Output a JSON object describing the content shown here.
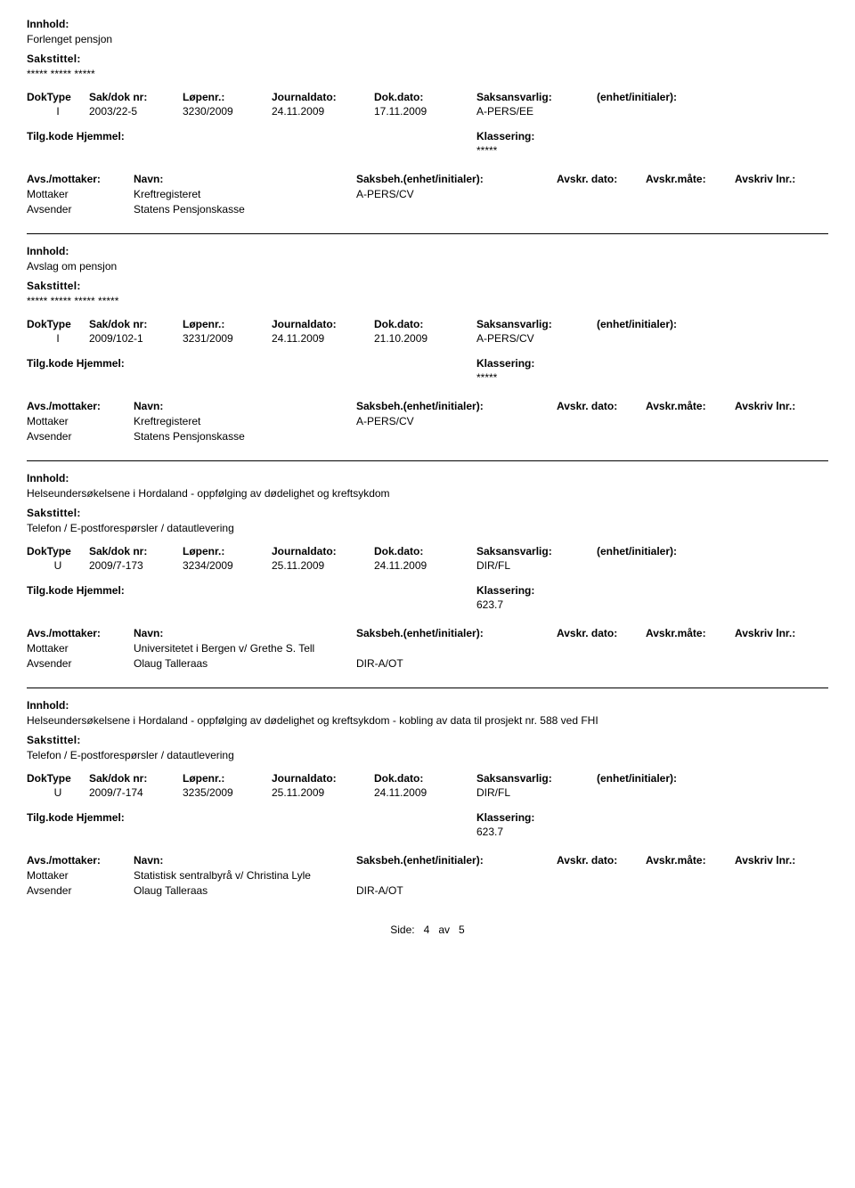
{
  "labels": {
    "innhold": "Innhold:",
    "sakstittel": "Sakstittel:",
    "doktype": "DokType",
    "sakdok": "Sak/dok nr:",
    "lopenr": "Løpenr.:",
    "journaldato": "Journaldato:",
    "dokdato": "Dok.dato:",
    "saksansvarlig": "Saksansvarlig:",
    "enhet": "(enhet/initialer):",
    "tilgkode": "Tilg.kode",
    "hjemmel": "Hjemmel:",
    "klassering": "Klassering:",
    "avsmottaker": "Avs./mottaker:",
    "navn": "Navn:",
    "saksbeh_full": "Saksbeh.(enhet/initialer):",
    "avskr_dato": "Avskr. dato:",
    "avskr_mate": "Avskr.måte:",
    "avskr_lnr": "Avskriv lnr.:",
    "mottaker": "Mottaker",
    "avsender": "Avsender"
  },
  "records": [
    {
      "innhold": "Forlenget pensjon",
      "sakstittel": "***** ***** *****",
      "doktype": "I",
      "sakdok": "2003/22-5",
      "lopenr": "3230/2009",
      "journaldato": "24.11.2009",
      "dokdato": "17.11.2009",
      "saksansvarlig": "A-PERS/EE",
      "enhet": "",
      "klassering": "*****",
      "parties": [
        {
          "role": "Mottaker",
          "name": "Kreftregisteret",
          "saksbeh": "A-PERS/CV"
        },
        {
          "role": "Avsender",
          "name": "Statens Pensjonskasse",
          "saksbeh": ""
        }
      ]
    },
    {
      "innhold": "Avslag om pensjon",
      "sakstittel": "***** ***** ***** *****",
      "doktype": "I",
      "sakdok": "2009/102-1",
      "lopenr": "3231/2009",
      "journaldato": "24.11.2009",
      "dokdato": "21.10.2009",
      "saksansvarlig": "A-PERS/CV",
      "enhet": "",
      "klassering": "*****",
      "parties": [
        {
          "role": "Mottaker",
          "name": "Kreftregisteret",
          "saksbeh": "A-PERS/CV"
        },
        {
          "role": "Avsender",
          "name": "Statens Pensjonskasse",
          "saksbeh": ""
        }
      ]
    },
    {
      "innhold": "Helseundersøkelsene i Hordaland - oppfølging av dødelighet og kreftsykdom",
      "sakstittel": "Telefon / E-postforespørsler / datautlevering",
      "doktype": "U",
      "sakdok": "2009/7-173",
      "lopenr": "3234/2009",
      "journaldato": "25.11.2009",
      "dokdato": "24.11.2009",
      "saksansvarlig": "DIR/FL",
      "enhet": "",
      "klassering": "623.7",
      "parties": [
        {
          "role": "Mottaker",
          "name": "Universitetet i Bergen v/ Grethe S. Tell",
          "saksbeh": ""
        },
        {
          "role": "Avsender",
          "name": "Olaug Talleraas",
          "saksbeh": "DIR-A/OT"
        }
      ]
    },
    {
      "innhold": "Helseundersøkelsene i Hordaland - oppfølging av dødelighet og kreftsykdom - kobling av data til prosjekt nr. 588 ved FHI",
      "sakstittel": "Telefon / E-postforespørsler / datautlevering",
      "doktype": "U",
      "sakdok": "2009/7-174",
      "lopenr": "3235/2009",
      "journaldato": "25.11.2009",
      "dokdato": "24.11.2009",
      "saksansvarlig": "DIR/FL",
      "enhet": "",
      "klassering": "623.7",
      "parties": [
        {
          "role": "Mottaker",
          "name": "Statistisk sentralbyrå v/ Christina Lyle",
          "saksbeh": ""
        },
        {
          "role": "Avsender",
          "name": "Olaug Talleraas",
          "saksbeh": "DIR-A/OT"
        }
      ]
    }
  ],
  "footer": {
    "side": "Side:",
    "page": "4",
    "av": "av",
    "total": "5"
  }
}
